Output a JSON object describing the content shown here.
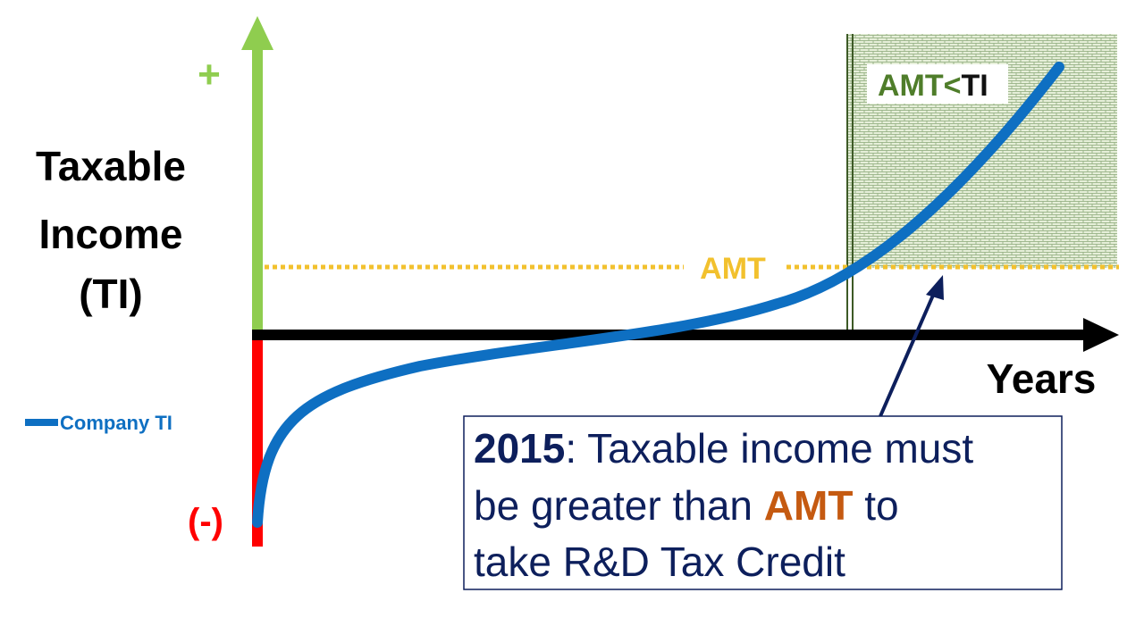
{
  "y_axis": {
    "plus": "+",
    "minus": "(-)",
    "label_lines": [
      "Taxable",
      "Income",
      "(TI)"
    ]
  },
  "x_axis": {
    "label": "Years"
  },
  "legend": {
    "label": "Company TI"
  },
  "amt_line": {
    "label": "AMT"
  },
  "region": {
    "label_parts": [
      "AMT<",
      "TI"
    ]
  },
  "callout": {
    "lines": [
      [
        "2015",
        ": Taxable income must"
      ],
      [
        "be greater than ",
        "AMT",
        " to"
      ],
      [
        "take R&D Tax Credit"
      ]
    ]
  }
}
